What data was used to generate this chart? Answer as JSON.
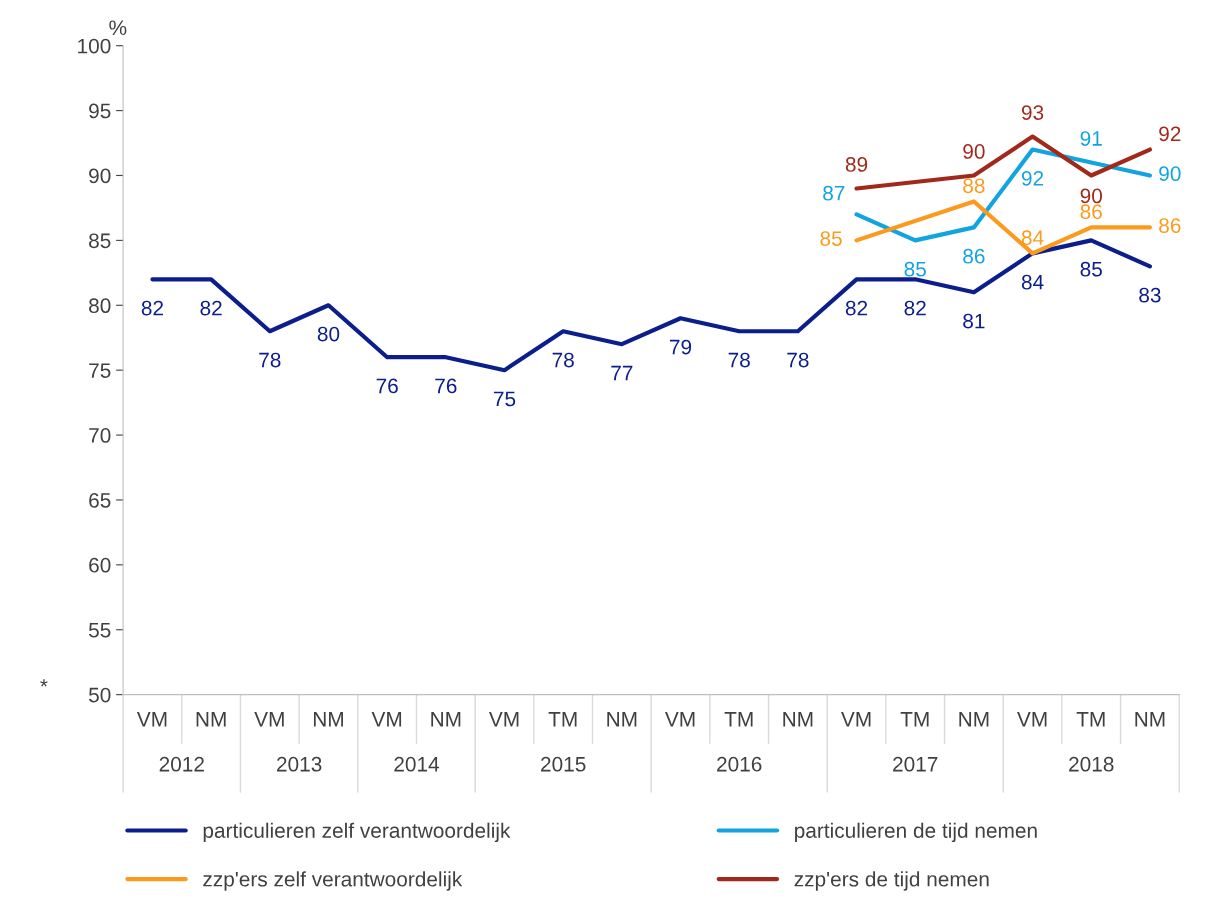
{
  "chart_data": {
    "type": "line",
    "ylabel": "%",
    "categories": [
      "VM",
      "NM",
      "VM",
      "NM",
      "VM",
      "NM",
      "VM",
      "TM",
      "NM",
      "VM",
      "TM",
      "NM",
      "VM",
      "TM",
      "NM",
      "VM",
      "TM",
      "NM"
    ],
    "series": [
      {
        "name": "particulieren zelf verantwoordelijk",
        "color": "#0c1e8c",
        "values": [
          82,
          82,
          78,
          80,
          76,
          76,
          75,
          78,
          77,
          79,
          78,
          78,
          82,
          82,
          81,
          84,
          85,
          83
        ]
      },
      {
        "name": "particulieren de tijd nemen",
        "color": "#12a4df",
        "values": [
          null,
          null,
          null,
          null,
          null,
          null,
          null,
          null,
          null,
          null,
          null,
          null,
          87,
          85,
          86,
          92,
          91,
          90
        ]
      },
      {
        "name": "zzp'ers zelf verantwoordelijk",
        "color": "#fb9a1d",
        "values": [
          null,
          null,
          null,
          null,
          null,
          null,
          null,
          null,
          null,
          null,
          null,
          null,
          85,
          null,
          88,
          84,
          86,
          86
        ]
      },
      {
        "name": "zzp'ers de tijd nemen",
        "color": "#a0291c",
        "values": [
          null,
          null,
          null,
          null,
          null,
          null,
          null,
          null,
          null,
          null,
          null,
          null,
          89,
          null,
          90,
          93,
          90,
          92
        ]
      }
    ],
    "ylim": [
      50,
      100
    ],
    "yticks": [
      50,
      55,
      60,
      65,
      70,
      75,
      80,
      85,
      90,
      95,
      100
    ],
    "data_labels": true,
    "legend": "bottom",
    "grid": false,
    "marker": "none",
    "line_style": "solid",
    "annotations": [
      "2012",
      "2013",
      "2014",
      "2015",
      "2016",
      "2017",
      "2018",
      "*"
    ]
  }
}
